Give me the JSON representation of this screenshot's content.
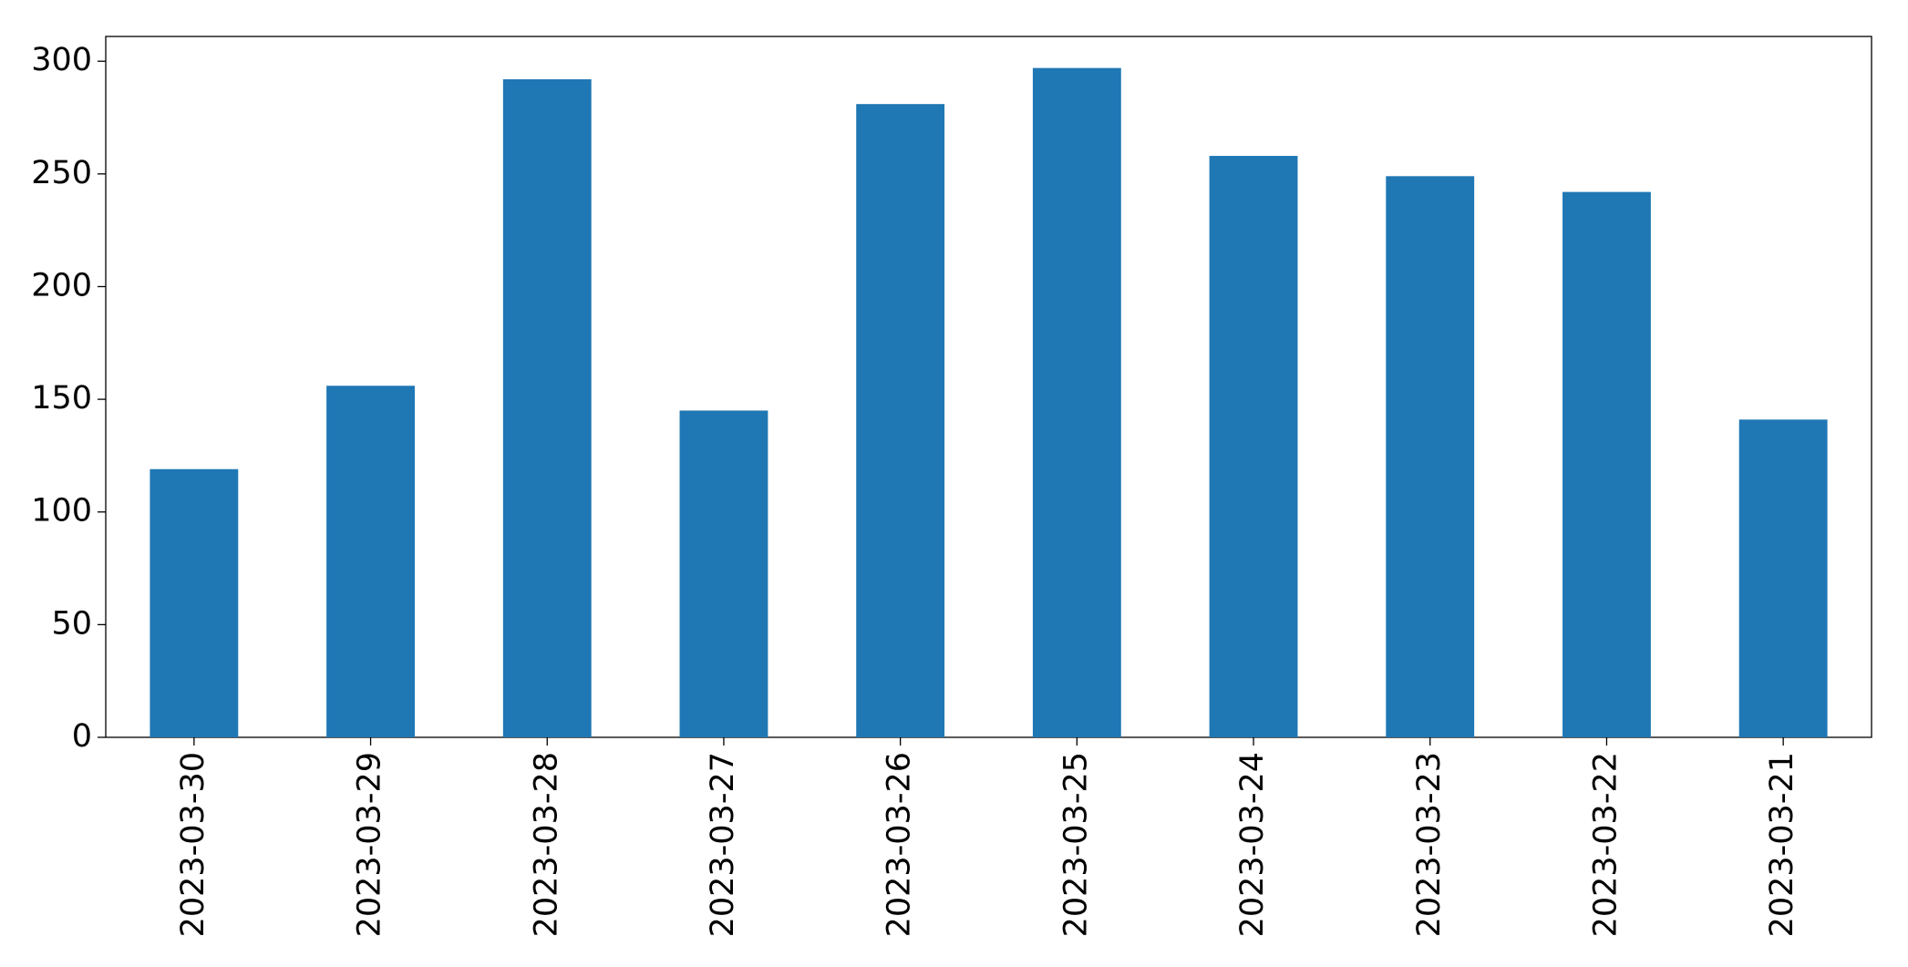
{
  "chart_data": {
    "type": "bar",
    "categories": [
      "2023-03-30",
      "2023-03-29",
      "2023-03-28",
      "2023-03-27",
      "2023-03-26",
      "2023-03-25",
      "2023-03-24",
      "2023-03-23",
      "2023-03-22",
      "2023-03-21"
    ],
    "values": [
      119,
      156,
      292,
      145,
      281,
      297,
      258,
      249,
      242,
      141
    ],
    "color": "#1f77b4",
    "ylim": [
      0,
      311
    ],
    "yticks": [
      0,
      50,
      100,
      150,
      200,
      250,
      300
    ],
    "grid": false
  }
}
